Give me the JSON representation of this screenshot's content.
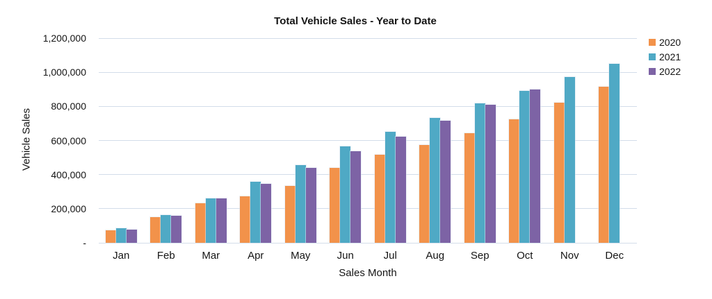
{
  "chart_data": {
    "type": "bar",
    "title": "Total Vehicle Sales - Year to Date",
    "xlabel": "Sales Month",
    "ylabel": "Vehicle Sales",
    "categories": [
      "Jan",
      "Feb",
      "Mar",
      "Apr",
      "May",
      "Jun",
      "Jul",
      "Aug",
      "Sep",
      "Oct",
      "Nov",
      "Dec"
    ],
    "series": [
      {
        "name": "2020",
        "color": "#F2924A",
        "values": [
          73000,
          150000,
          233000,
          273000,
          333000,
          441000,
          515000,
          575000,
          644000,
          726000,
          823000,
          914000
        ]
      },
      {
        "name": "2021",
        "color": "#4FA9C5",
        "values": [
          84000,
          164000,
          262000,
          357000,
          457000,
          567000,
          651000,
          732000,
          818000,
          892000,
          972000,
          1050000
        ]
      },
      {
        "name": "2022",
        "color": "#7D63A5",
        "values": [
          78000,
          160000,
          260000,
          344000,
          438000,
          537000,
          621000,
          716000,
          810000,
          899000,
          null,
          null
        ]
      }
    ],
    "ylim": [
      0,
      1200000
    ],
    "yticks": [
      {
        "value": 1200000,
        "label": "1,200,000"
      },
      {
        "value": 1000000,
        "label": "1,000,000"
      },
      {
        "value": 800000,
        "label": "800,000"
      },
      {
        "value": 600000,
        "label": "600,000"
      },
      {
        "value": 400000,
        "label": "400,000"
      },
      {
        "value": 200000,
        "label": "200,000"
      },
      {
        "value": 0,
        "label": "-"
      }
    ],
    "grid": "horizontal",
    "legend_position": "top-right"
  },
  "style_colors": {
    "gridline": "#D3DDE9",
    "text": "#141414",
    "background": "#FFFFFF"
  }
}
